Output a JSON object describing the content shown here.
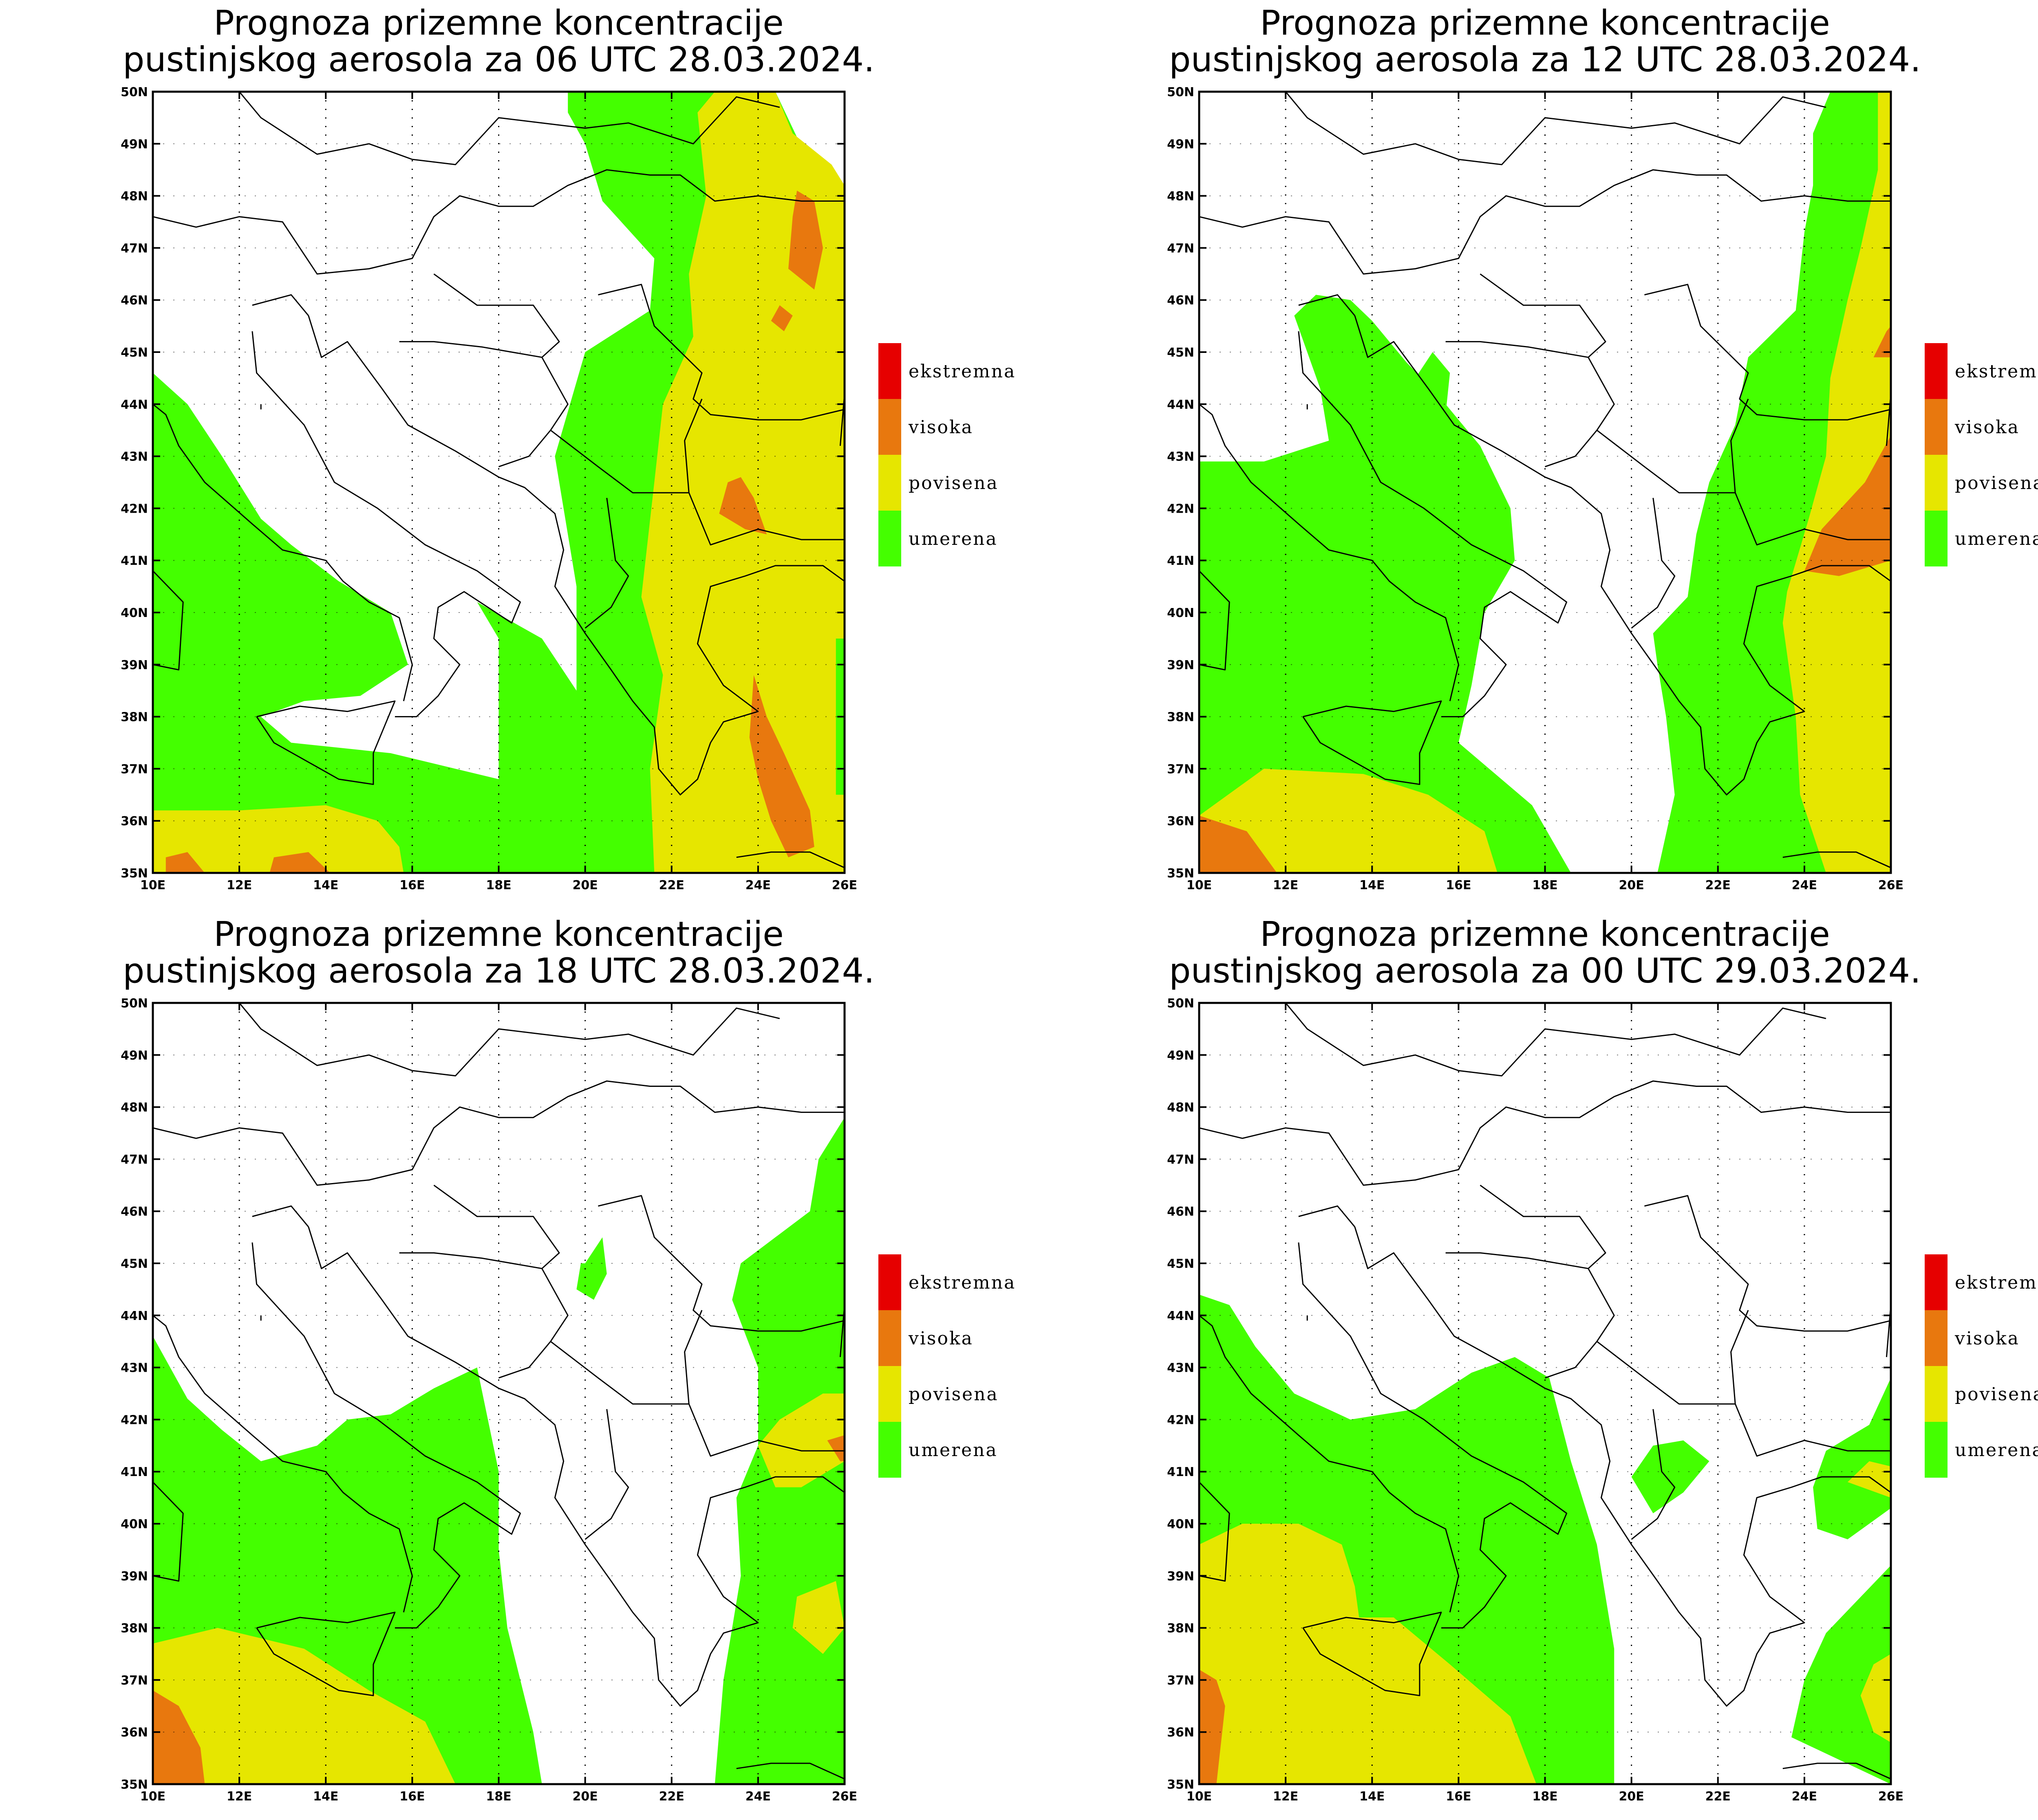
{
  "colors": {
    "ekstremna": "#e60000",
    "visoka": "#e8780e",
    "povisena": "#e6e600",
    "umerena": "#44ff00"
  },
  "legend": [
    {
      "key": "ekstremna",
      "label": "ekstremna"
    },
    {
      "key": "visoka",
      "label": "visoka"
    },
    {
      "key": "povisena",
      "label": "povisena"
    },
    {
      "key": "umerena",
      "label": "umerena"
    }
  ],
  "lon_ticks": [
    "10E",
    "12E",
    "14E",
    "16E",
    "18E",
    "20E",
    "22E",
    "24E",
    "26E"
  ],
  "lat_ticks": [
    "35N",
    "36N",
    "37N",
    "38N",
    "39N",
    "40N",
    "41N",
    "42N",
    "43N",
    "44N",
    "45N",
    "46N",
    "47N",
    "48N",
    "49N",
    "50N"
  ],
  "panels": [
    {
      "title_line1": "Prognoza prizemne koncentracije",
      "title_line2": "pustinjskog aerosola za 06 UTC 28.03.2024."
    },
    {
      "title_line1": "Prognoza prizemne koncentracije",
      "title_line2": "pustinjskog aerosola za 12 UTC 28.03.2024."
    },
    {
      "title_line1": "Prognoza prizemne koncentracije",
      "title_line2": "pustinjskog aerosola za 18 UTC 28.03.2024."
    },
    {
      "title_line1": "Prognoza prizemne koncentracije",
      "title_line2": "pustinjskog aerosola za 00 UTC 29.03.2024."
    }
  ]
}
